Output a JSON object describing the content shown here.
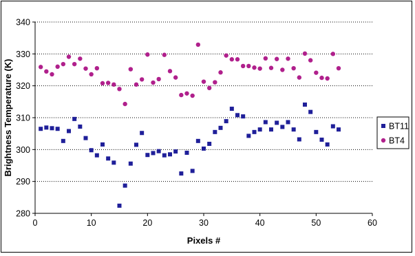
{
  "chart_data": {
    "type": "scatter",
    "title": "",
    "xlabel": "Pixels #",
    "ylabel": "Brightness Temperature (K)",
    "xlim": [
      0,
      60
    ],
    "ylim": [
      280,
      340
    ],
    "x_ticks": [
      0,
      10,
      20,
      30,
      40,
      50,
      60
    ],
    "y_ticks": [
      280,
      290,
      300,
      310,
      320,
      330,
      340
    ],
    "grid": "horizontal dotted",
    "legend_position": "right",
    "series": [
      {
        "name": "BT11",
        "marker": "square",
        "color": "#1f1f99",
        "x": [
          1,
          2,
          3,
          4,
          5,
          6,
          7,
          8,
          9,
          10,
          11,
          12,
          13,
          14,
          15,
          16,
          17,
          18,
          19,
          20,
          21,
          22,
          23,
          24,
          25,
          26,
          27,
          28,
          29,
          30,
          31,
          32,
          33,
          34,
          35,
          36,
          37,
          38,
          39,
          40,
          41,
          42,
          43,
          44,
          45,
          46,
          47,
          48,
          49,
          50,
          51,
          52,
          53,
          54
        ],
        "y": [
          306.5,
          306.9,
          306.7,
          306.5,
          302.7,
          305.8,
          309.6,
          307.2,
          303.6,
          299.8,
          298.2,
          301.6,
          297.2,
          295.9,
          282.4,
          288.7,
          295.6,
          301.5,
          305.2,
          298.3,
          298.9,
          299.5,
          298.2,
          298.5,
          299.4,
          292.5,
          299.0,
          293.3,
          302.7,
          300.3,
          301.8,
          305.5,
          306.8,
          308.9,
          312.8,
          310.8,
          310.4,
          304.3,
          305.5,
          306.3,
          308.6,
          306.3,
          308.4,
          307.1,
          308.6,
          306.3,
          303.2,
          314.1,
          311.8,
          305.5,
          303.1,
          301.6,
          307.3,
          306.3
        ]
      },
      {
        "name": "BT4",
        "marker": "circle",
        "color": "#b0208c",
        "x": [
          1,
          2,
          3,
          4,
          5,
          6,
          7,
          8,
          9,
          10,
          11,
          12,
          13,
          14,
          15,
          16,
          17,
          18,
          19,
          20,
          21,
          22,
          23,
          24,
          25,
          26,
          27,
          28,
          29,
          30,
          31,
          32,
          33,
          34,
          35,
          36,
          37,
          38,
          39,
          40,
          41,
          42,
          43,
          44,
          45,
          46,
          47,
          48,
          49,
          50,
          51,
          52,
          53,
          54
        ],
        "y": [
          325.9,
          324.5,
          323.6,
          326.0,
          326.8,
          329.1,
          326.8,
          328.5,
          325.4,
          323.6,
          325.5,
          320.8,
          320.9,
          320.4,
          319.0,
          314.3,
          325.2,
          320.4,
          322.0,
          329.8,
          321.0,
          322.1,
          329.7,
          324.6,
          322.6,
          317.1,
          317.6,
          316.9,
          332.9,
          321.3,
          319.3,
          321.1,
          324.2,
          329.5,
          328.3,
          328.3,
          326.2,
          326.2,
          325.7,
          325.4,
          328.6,
          325.6,
          328.4,
          325.0,
          328.5,
          325.5,
          322.6,
          330.1,
          328.0,
          324.1,
          322.5,
          322.3,
          330.0,
          325.5
        ]
      }
    ]
  }
}
